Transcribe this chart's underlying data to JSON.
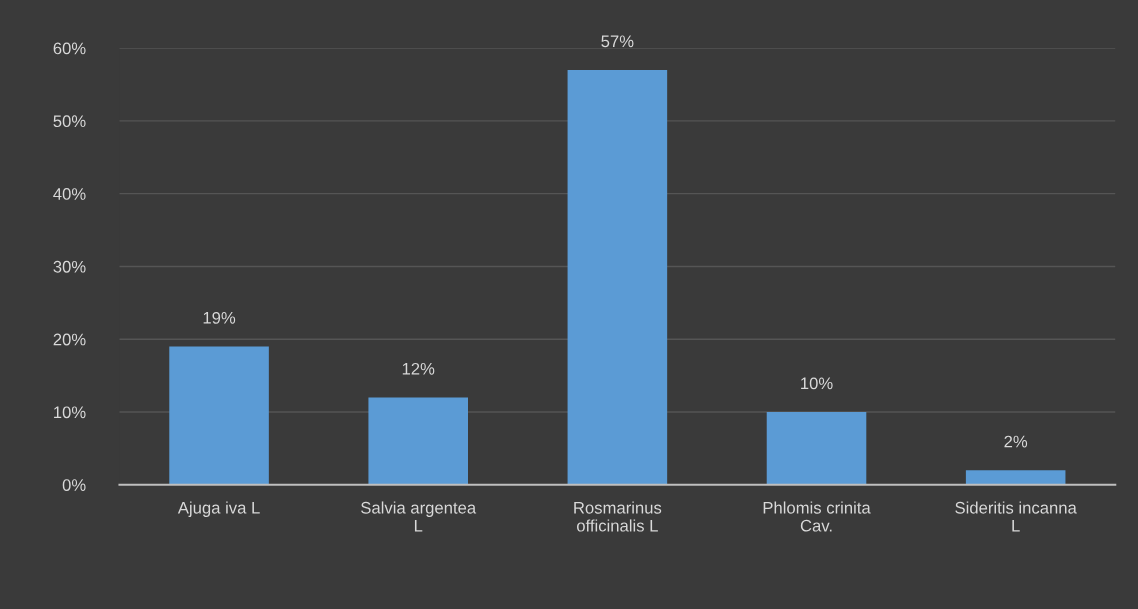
{
  "chart_data": {
    "type": "bar",
    "categories": [
      "Ajuga iva L",
      "Salvia argentea\nL",
      "Rosmarinus\nofficinalis L",
      "Phlomis crinita\nCav.",
      "Sideritis incanna\nL"
    ],
    "values": [
      19,
      12,
      57,
      10,
      2
    ],
    "value_labels": [
      "19%",
      "12%",
      "57%",
      "10%",
      "2%"
    ],
    "color": "#5b9bd5",
    "ylim": [
      0,
      60
    ],
    "yticks": [
      {
        "value": 0,
        "label": "0%"
      },
      {
        "value": 10,
        "label": "10%"
      },
      {
        "value": 20,
        "label": "20%"
      },
      {
        "value": 30,
        "label": "30%"
      },
      {
        "value": 40,
        "label": "40%"
      },
      {
        "value": 50,
        "label": "50%"
      },
      {
        "value": 60,
        "label": "60%"
      }
    ],
    "grid": "y",
    "legend": false
  }
}
